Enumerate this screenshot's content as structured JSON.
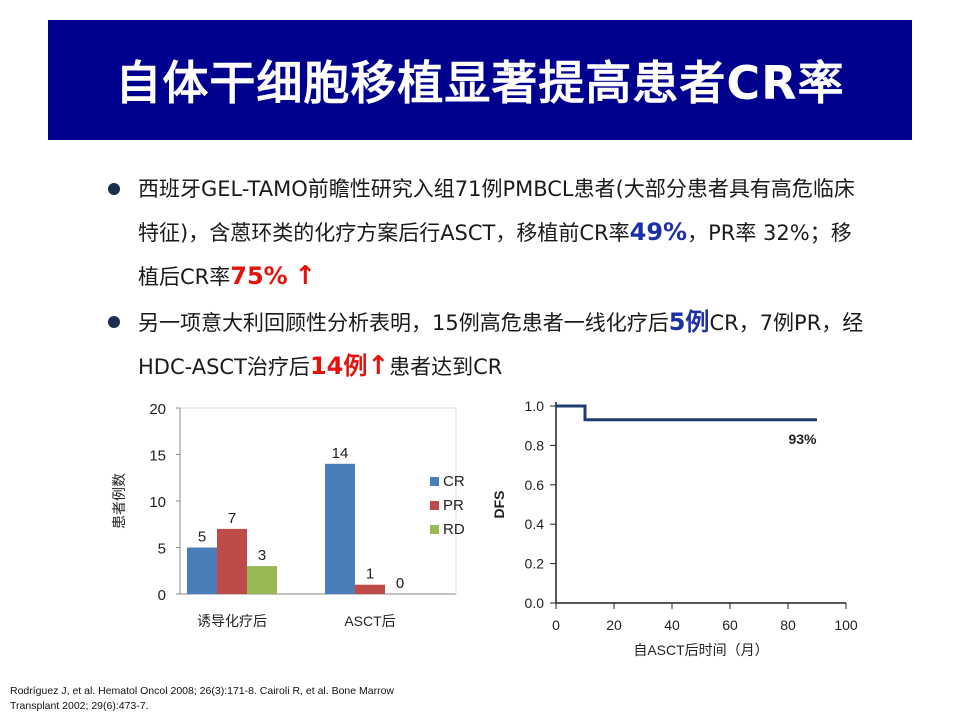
{
  "title": "自体干细胞移植显著提高患者CR率",
  "bullets": [
    {
      "p1": "西班牙GEL-TAMO前瞻性研究入组71例PMBCL患者(大部分患者具有高危临床特征)，含蒽环类的化疗方案后行ASCT，移植前CR率",
      "hl1": "49%",
      "p2": "，PR率 32%；移植后CR率",
      "hl2": "75%",
      "arrow": "↑"
    },
    {
      "p1": "另一项意大利回顾性分析表明，15例高危患者一线化疗后",
      "hl1": "5例",
      "p2": "CR，7例PR，经HDC-ASCT治疗后",
      "hl2": "14例",
      "arrow": "↑",
      "p3": "患者达到CR"
    }
  ],
  "chart_data": [
    {
      "type": "bar",
      "ylabel": "患者例数",
      "ylim": [
        0,
        20
      ],
      "yticks": [
        "20",
        "15",
        "10",
        "5",
        "0"
      ],
      "categories": [
        "诱导化疗后",
        "ASCT后"
      ],
      "series": [
        {
          "name": "CR",
          "color": "#4a7ebb",
          "values": [
            5,
            14
          ]
        },
        {
          "name": "PR",
          "color": "#be4b48",
          "values": [
            7,
            1
          ]
        },
        {
          "name": "RD",
          "color": "#98b954",
          "values": [
            3,
            0
          ]
        }
      ],
      "legend_position": "right",
      "grid": false
    },
    {
      "type": "line",
      "xlabel": "自ASCT后时间（月）",
      "ylabel": "DFS",
      "xlim": [
        0,
        100
      ],
      "ylim": [
        0,
        1.0
      ],
      "xticks": [
        "0",
        "20",
        "40",
        "60",
        "80",
        "100"
      ],
      "yticks": [
        "1.0",
        "0.8",
        "0.6",
        "0.4",
        "0.2",
        "0.0"
      ],
      "line_color": "#1f3d6e",
      "series": [
        {
          "x": [
            0,
            10,
            10,
            90
          ],
          "y": [
            1.0,
            1.0,
            0.93,
            0.93
          ]
        }
      ],
      "annotation": "93%",
      "annotation_color": "#c0282a",
      "grid": false
    }
  ],
  "citation": "Rodríguez J, et al. Hematol Oncol 2008; 26(3):171-8. Cairoli R, et al. Bone Marrow Transplant 2002; 29(6):473-7."
}
